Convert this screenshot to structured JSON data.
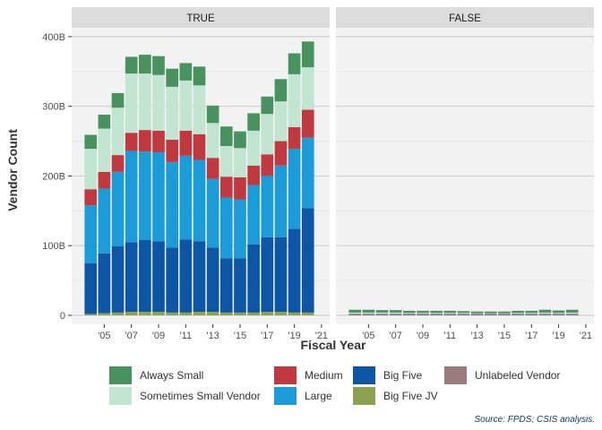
{
  "chart_data": {
    "type": "bar",
    "stacked": true,
    "facets": [
      "TRUE",
      "FALSE"
    ],
    "x": [
      2004,
      2005,
      2006,
      2007,
      2008,
      2009,
      2010,
      2011,
      2012,
      2013,
      2014,
      2015,
      2016,
      2017,
      2018,
      2019,
      2020
    ],
    "x_tick_values": [
      2005,
      2007,
      2009,
      2011,
      2013,
      2015,
      2017,
      2019,
      2021
    ],
    "x_tick_labels": [
      "'05",
      "'07",
      "'09",
      "'11",
      "'13",
      "'15",
      "'17",
      "'19",
      "'21"
    ],
    "xlabel": "Fiscal Year",
    "ylabel": "Vendor Count",
    "ylim": [
      0,
      400
    ],
    "y_tick_values": [
      0,
      100,
      200,
      300,
      400
    ],
    "y_tick_labels": [
      "0",
      "100B",
      "200B",
      "300B",
      "400B"
    ],
    "grid": true,
    "legend_position": "bottom",
    "caption": "Source: FPDS; CSIS analysis.",
    "series": [
      {
        "name": "Big Five JV",
        "color": "#8ca252",
        "values": {
          "TRUE": [
            2,
            3,
            4,
            5,
            5,
            5,
            4,
            4,
            5,
            5,
            4,
            4,
            4,
            5,
            5,
            4,
            4
          ],
          "FALSE": [
            0,
            0,
            0,
            0,
            0,
            0,
            0,
            0,
            0,
            0,
            0,
            0,
            0,
            0,
            0,
            0,
            0
          ]
        }
      },
      {
        "name": "Big Five",
        "color": "#0c56a5",
        "values": {
          "TRUE": [
            73,
            86,
            95,
            100,
            103,
            101,
            93,
            105,
            101,
            92,
            78,
            78,
            98,
            107,
            107,
            120,
            150
          ],
          "FALSE": [
            0.5,
            0.5,
            0.5,
            0.5,
            0.5,
            0.5,
            0.5,
            0.5,
            0.5,
            0.5,
            0.5,
            0.5,
            0.5,
            0.5,
            0.5,
            0.5,
            0.5
          ]
        }
      },
      {
        "name": "Large",
        "color": "#1b9bd7",
        "values": {
          "TRUE": [
            83,
            93,
            107,
            131,
            127,
            128,
            123,
            120,
            117,
            99,
            87,
            84,
            85,
            88,
            103,
            115,
            101
          ],
          "FALSE": [
            0.5,
            0.5,
            0.5,
            0.5,
            0.5,
            0.5,
            0.5,
            0.5,
            0.5,
            0.5,
            0.5,
            0.5,
            0.5,
            0.5,
            0.5,
            0.5,
            0.5
          ]
        }
      },
      {
        "name": "Medium",
        "color": "#c0393f",
        "values": {
          "TRUE": [
            23,
            24,
            24,
            26,
            31,
            31,
            32,
            36,
            37,
            30,
            30,
            32,
            28,
            31,
            35,
            31,
            40
          ],
          "FALSE": [
            1,
            1,
            1,
            1,
            1,
            1,
            1,
            1,
            1,
            1,
            1,
            1,
            1,
            1,
            1,
            1,
            1
          ]
        }
      },
      {
        "name": "Sometimes Small Vendor",
        "color": "#c2e5d2",
        "values": {
          "TRUE": [
            58,
            62,
            68,
            85,
            81,
            80,
            76,
            72,
            70,
            50,
            44,
            42,
            50,
            58,
            57,
            76,
            61
          ],
          "FALSE": [
            2,
            2,
            2,
            2,
            1.5,
            1.5,
            1.5,
            1.5,
            1.5,
            1,
            1,
            1,
            1.5,
            1.5,
            2,
            1.5,
            2
          ]
        }
      },
      {
        "name": "Always Small",
        "color": "#47925e",
        "values": {
          "TRUE": [
            20,
            20,
            21,
            24,
            27,
            27,
            26,
            25,
            27,
            25,
            28,
            24,
            25,
            25,
            32,
            30,
            37
          ],
          "FALSE": [
            4,
            4,
            3.5,
            3.5,
            3,
            3,
            3,
            3,
            2.5,
            2.5,
            2.5,
            2.5,
            3,
            3,
            4,
            3.5,
            4
          ]
        }
      },
      {
        "name": "Unlabeled Vendor",
        "color": "#9b7b7e",
        "values": {
          "TRUE": [
            0,
            0,
            0,
            0,
            0,
            0,
            0,
            0,
            0,
            0,
            0,
            0,
            0,
            0,
            0,
            0,
            0
          ],
          "FALSE": [
            0,
            0,
            0,
            0,
            0,
            0,
            0,
            0,
            0,
            0,
            0,
            0,
            0,
            0,
            0,
            0,
            0
          ]
        }
      }
    ],
    "legend_items": [
      {
        "name": "Always Small",
        "color": "#47925e"
      },
      {
        "name": "Sometimes Small Vendor",
        "color": "#c2e5d2"
      },
      {
        "name": "Medium",
        "color": "#c0393f"
      },
      {
        "name": "Large",
        "color": "#1b9bd7"
      },
      {
        "name": "Big Five",
        "color": "#0c56a5"
      },
      {
        "name": "Big Five JV",
        "color": "#8ca252"
      },
      {
        "name": "Unlabeled Vendor",
        "color": "#9b7b7e"
      }
    ]
  }
}
